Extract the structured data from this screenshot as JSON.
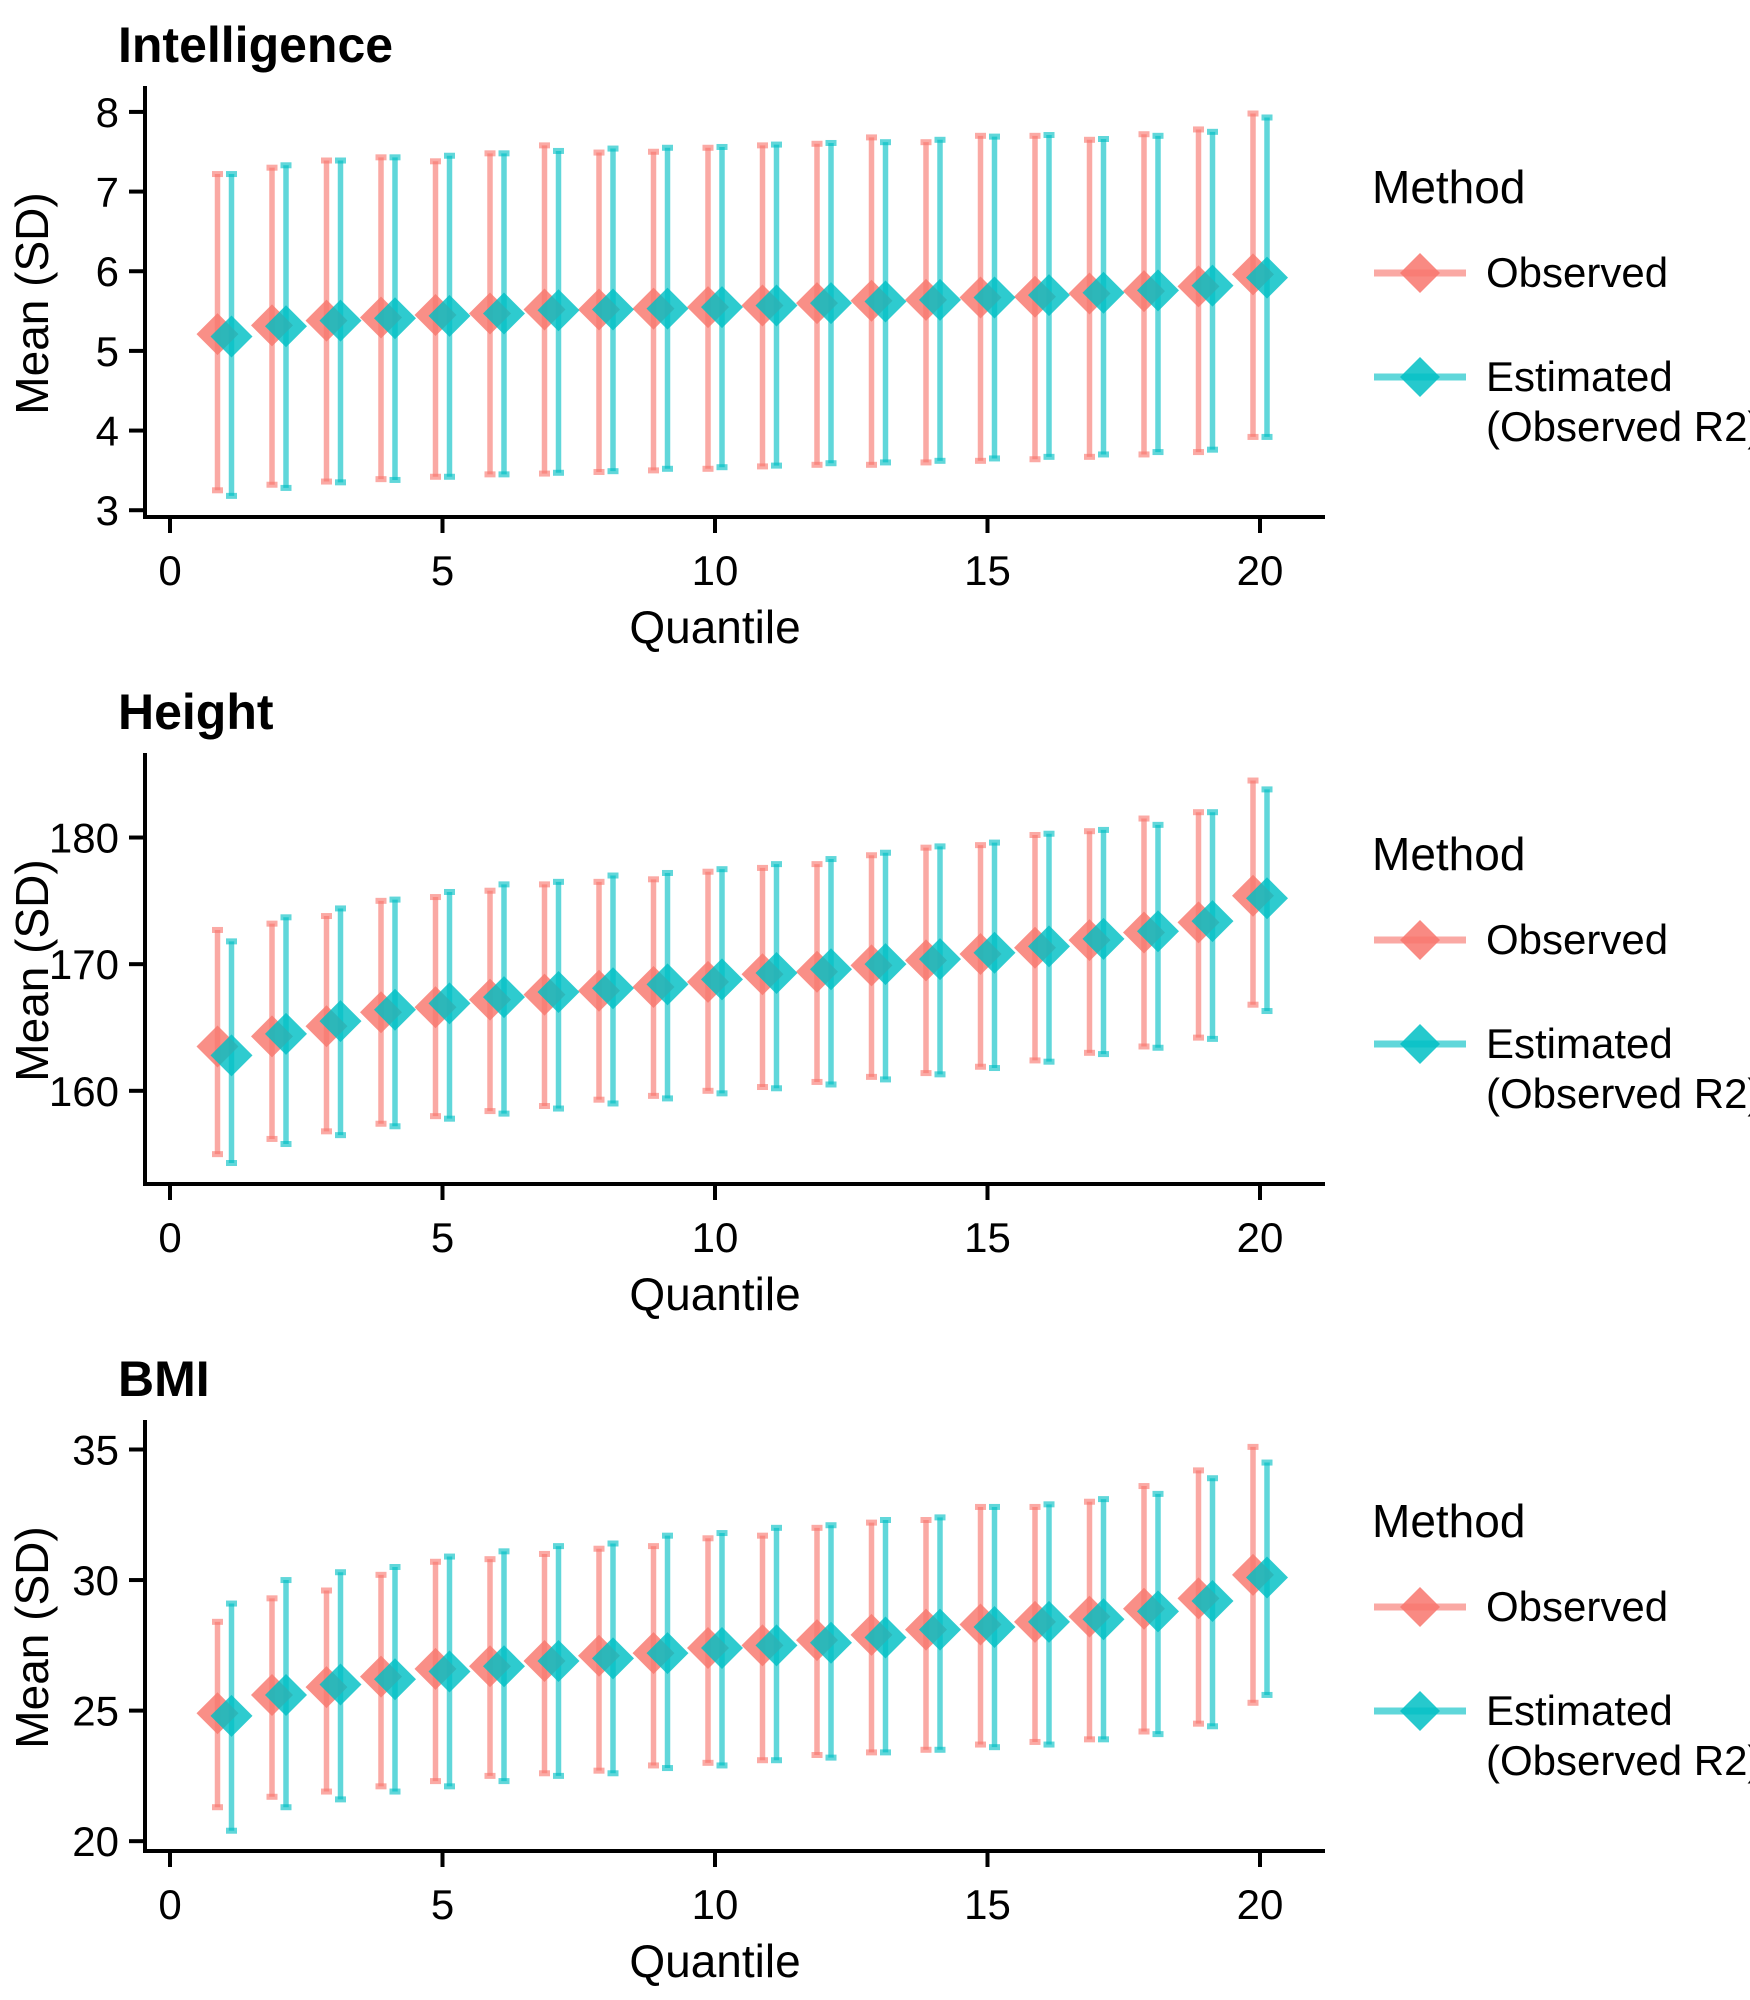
{
  "figure_background": "#ffffff",
  "text_color": "#000000",
  "axis_color": "#000000",
  "legend": {
    "title": "Method",
    "items": [
      {
        "label": "Observed",
        "color": "#F8766D"
      },
      {
        "label_line1": "Estimated",
        "label_line2": "(Observed R2)",
        "color": "#00BFC4"
      }
    ],
    "position": "right"
  },
  "axes": {
    "x_label": "Quantile",
    "y_label": "Mean (SD)"
  },
  "chart_data": [
    {
      "type": "scatter",
      "title": "Intelligence",
      "xlabel": "Quantile",
      "ylabel": "Mean (SD)",
      "grid": false,
      "legend_position": "right",
      "x": [
        1,
        2,
        3,
        4,
        5,
        6,
        7,
        8,
        9,
        10,
        11,
        12,
        13,
        14,
        15,
        16,
        17,
        18,
        19,
        20
      ],
      "x_ticks": [
        0,
        5,
        10,
        15,
        20
      ],
      "y_ticks": [
        3,
        4,
        5,
        6,
        7,
        8
      ],
      "xlim": [
        -0.5,
        21.2
      ],
      "ylim": [
        2.94,
        8.25
      ],
      "series": [
        {
          "name": "Observed",
          "color": "#F8766D",
          "mean": [
            5.21,
            5.32,
            5.38,
            5.42,
            5.45,
            5.47,
            5.52,
            5.52,
            5.53,
            5.55,
            5.57,
            5.6,
            5.63,
            5.64,
            5.67,
            5.68,
            5.72,
            5.75,
            5.81,
            5.96
          ],
          "lower": [
            3.25,
            3.32,
            3.36,
            3.39,
            3.42,
            3.45,
            3.46,
            3.48,
            3.5,
            3.52,
            3.55,
            3.57,
            3.57,
            3.6,
            3.62,
            3.64,
            3.67,
            3.7,
            3.73,
            3.92
          ],
          "upper": [
            7.22,
            7.3,
            7.39,
            7.43,
            7.38,
            7.48,
            7.58,
            7.49,
            7.5,
            7.55,
            7.58,
            7.6,
            7.68,
            7.62,
            7.7,
            7.7,
            7.65,
            7.72,
            7.78,
            7.98
          ]
        },
        {
          "name": "Estimated (Observed R2)",
          "color": "#00BFC4",
          "mean": [
            5.18,
            5.31,
            5.38,
            5.41,
            5.44,
            5.47,
            5.51,
            5.52,
            5.53,
            5.55,
            5.57,
            5.6,
            5.62,
            5.64,
            5.67,
            5.7,
            5.73,
            5.76,
            5.82,
            5.92
          ],
          "lower": [
            3.18,
            3.28,
            3.35,
            3.38,
            3.42,
            3.45,
            3.47,
            3.49,
            3.52,
            3.54,
            3.56,
            3.59,
            3.6,
            3.62,
            3.65,
            3.67,
            3.7,
            3.73,
            3.76,
            3.92
          ],
          "upper": [
            7.22,
            7.33,
            7.39,
            7.43,
            7.45,
            7.48,
            7.51,
            7.54,
            7.55,
            7.56,
            7.59,
            7.61,
            7.62,
            7.65,
            7.69,
            7.71,
            7.66,
            7.7,
            7.75,
            7.93
          ]
        }
      ]
    },
    {
      "type": "scatter",
      "title": "Height",
      "xlabel": "Quantile",
      "ylabel": "Mean (SD)",
      "grid": false,
      "legend_position": "right",
      "x": [
        1,
        2,
        3,
        4,
        5,
        6,
        7,
        8,
        9,
        10,
        11,
        12,
        13,
        14,
        15,
        16,
        17,
        18,
        19,
        20
      ],
      "x_ticks": [
        0,
        5,
        10,
        15,
        20
      ],
      "y_ticks": [
        160,
        170,
        180
      ],
      "xlim": [
        -0.5,
        21.2
      ],
      "ylim": [
        152.8,
        186.2
      ],
      "series": [
        {
          "name": "Observed",
          "color": "#F8766D",
          "mean": [
            163.5,
            164.3,
            165.1,
            166.2,
            166.6,
            167.2,
            167.6,
            167.9,
            168.2,
            168.6,
            169.2,
            169.4,
            169.9,
            170.3,
            170.8,
            171.3,
            171.9,
            172.5,
            173.3,
            175.4
          ],
          "lower": [
            155.0,
            156.2,
            156.8,
            157.4,
            158.0,
            158.4,
            158.8,
            159.3,
            159.6,
            160.0,
            160.3,
            160.7,
            161.1,
            161.4,
            161.9,
            162.4,
            163.0,
            163.5,
            164.2,
            166.8
          ],
          "upper": [
            172.7,
            173.2,
            173.8,
            175.0,
            175.3,
            175.8,
            176.3,
            176.5,
            176.7,
            177.3,
            177.6,
            177.9,
            178.6,
            179.2,
            179.4,
            180.2,
            180.5,
            181.5,
            182.0,
            184.5
          ]
        },
        {
          "name": "Estimated (Observed R2)",
          "color": "#00BFC4",
          "mean": [
            162.8,
            164.5,
            165.5,
            166.4,
            166.9,
            167.4,
            167.8,
            168.1,
            168.4,
            168.8,
            169.3,
            169.6,
            170.0,
            170.4,
            170.9,
            171.4,
            172.0,
            172.6,
            173.4,
            175.2
          ],
          "lower": [
            154.3,
            155.8,
            156.5,
            157.2,
            157.8,
            158.2,
            158.6,
            159.0,
            159.4,
            159.8,
            160.2,
            160.5,
            160.9,
            161.3,
            161.8,
            162.3,
            162.9,
            163.4,
            164.1,
            166.3
          ],
          "upper": [
            171.8,
            173.7,
            174.4,
            175.1,
            175.7,
            176.3,
            176.5,
            177.0,
            177.2,
            177.5,
            177.9,
            178.3,
            178.8,
            179.3,
            179.6,
            180.3,
            180.6,
            181.0,
            182.0,
            183.8
          ]
        }
      ]
    },
    {
      "type": "scatter",
      "title": "BMI",
      "xlabel": "Quantile",
      "ylabel": "Mean (SD)",
      "grid": false,
      "legend_position": "right",
      "x": [
        1,
        2,
        3,
        4,
        5,
        6,
        7,
        8,
        9,
        10,
        11,
        12,
        13,
        14,
        15,
        16,
        17,
        18,
        19,
        20
      ],
      "x_ticks": [
        0,
        5,
        10,
        15,
        20
      ],
      "y_ticks": [
        20,
        25,
        30,
        35
      ],
      "xlim": [
        -0.5,
        21.2
      ],
      "ylim": [
        19.7,
        35.9
      ],
      "series": [
        {
          "name": "Observed",
          "color": "#F8766D",
          "mean": [
            24.9,
            25.6,
            25.9,
            26.3,
            26.6,
            26.7,
            26.9,
            27.1,
            27.2,
            27.4,
            27.5,
            27.7,
            27.9,
            28.1,
            28.3,
            28.4,
            28.6,
            28.9,
            29.3,
            30.2
          ],
          "lower": [
            21.3,
            21.7,
            21.9,
            22.1,
            22.3,
            22.5,
            22.6,
            22.7,
            22.9,
            23.0,
            23.1,
            23.3,
            23.4,
            23.5,
            23.7,
            23.8,
            23.9,
            24.2,
            24.5,
            25.3
          ],
          "upper": [
            28.4,
            29.3,
            29.6,
            30.2,
            30.7,
            30.8,
            31.0,
            31.2,
            31.3,
            31.6,
            31.7,
            32.0,
            32.2,
            32.3,
            32.8,
            32.8,
            33.0,
            33.6,
            34.2,
            35.1
          ]
        },
        {
          "name": "Estimated (Observed R2)",
          "color": "#00BFC4",
          "mean": [
            24.8,
            25.6,
            26.0,
            26.2,
            26.5,
            26.7,
            26.9,
            27.0,
            27.2,
            27.4,
            27.5,
            27.6,
            27.8,
            28.1,
            28.2,
            28.4,
            28.5,
            28.8,
            29.2,
            30.1
          ],
          "lower": [
            20.4,
            21.3,
            21.6,
            21.9,
            22.1,
            22.3,
            22.5,
            22.6,
            22.8,
            22.9,
            23.1,
            23.2,
            23.4,
            23.5,
            23.6,
            23.7,
            23.9,
            24.1,
            24.4,
            25.6
          ],
          "upper": [
            29.1,
            30.0,
            30.3,
            30.5,
            30.9,
            31.1,
            31.3,
            31.4,
            31.7,
            31.8,
            32.0,
            32.1,
            32.3,
            32.4,
            32.8,
            32.9,
            33.1,
            33.3,
            33.9,
            34.5
          ]
        }
      ]
    }
  ],
  "style": {
    "point_shape": "diamond",
    "errorbar_opacity": 0.62,
    "point_opacity": 0.82
  }
}
